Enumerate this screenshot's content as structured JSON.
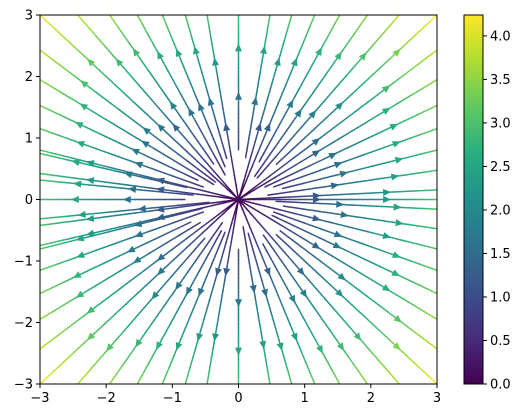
{
  "chart_data": {
    "type": "streamplot",
    "title": "",
    "xlabel": "",
    "ylabel": "",
    "xlim": [
      -3,
      3
    ],
    "ylim": [
      -3,
      3
    ],
    "x_ticks": [
      -3,
      -2,
      -1,
      0,
      1,
      2,
      3
    ],
    "y_ticks": [
      -3,
      -2,
      -1,
      0,
      1,
      2,
      3
    ],
    "field": {
      "u": "x",
      "v": "y",
      "pattern": "radial outward from origin"
    },
    "color_by": "speed",
    "colormap": "viridis",
    "colorbar": {
      "range": [
        0.0,
        4.24
      ],
      "ticks": [
        "0.0",
        "0.5",
        "1.0",
        "1.5",
        "2.0",
        "2.5",
        "3.0",
        "3.5",
        "4.0"
      ]
    },
    "grid": false,
    "legend": "none",
    "stream_directions_deg": [
      -172,
      -159,
      -147,
      -135,
      -123,
      -111,
      -99,
      -90,
      -81,
      -69,
      -57,
      -45,
      -33,
      -21,
      -9,
      0,
      9,
      21,
      33,
      45,
      57,
      69,
      81,
      90,
      99,
      111,
      123,
      135,
      147,
      159,
      172,
      180,
      186,
      194,
      -186,
      -194,
      3,
      -3,
      15,
      -15,
      27,
      -27,
      39,
      -39,
      51,
      -51,
      63,
      -63,
      75,
      -75,
      105,
      -105,
      117,
      -117,
      129,
      -129,
      141,
      -141,
      153,
      -153,
      165,
      -165
    ]
  }
}
